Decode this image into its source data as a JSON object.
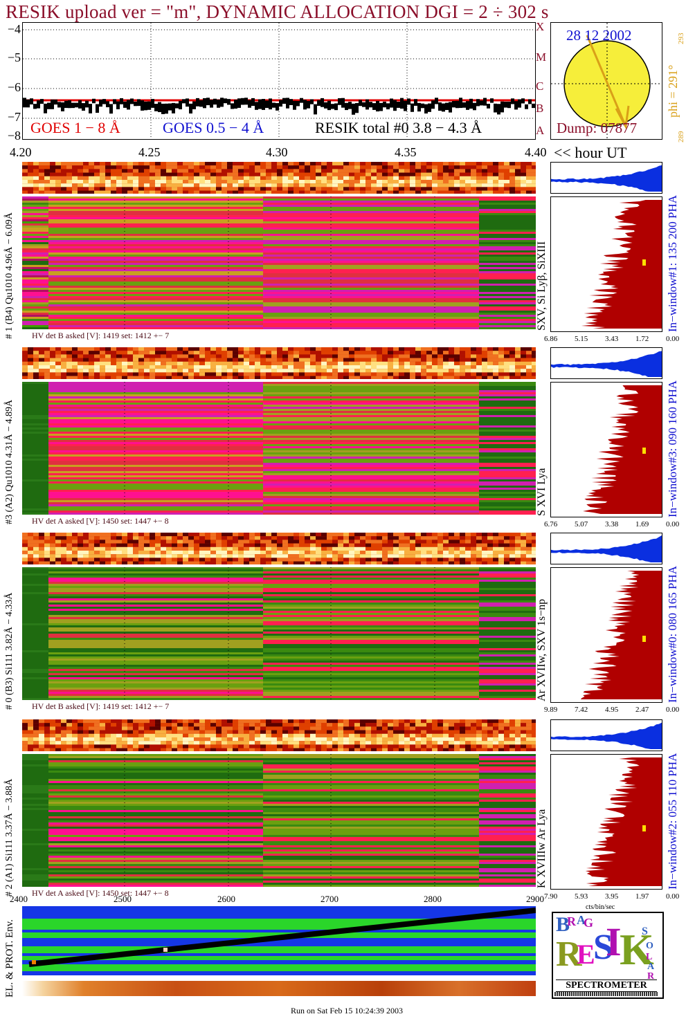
{
  "title": "RESIK upload ver = \"m\", DYNAMIC ALLOCATION  DGI =   2 ÷ 302 s",
  "footer": "Run on Sat Feb 15 10:24:39 2003",
  "colors": {
    "title": "#8b0f2a",
    "goes_long": "#e00000",
    "goes_short": "#1010d0",
    "resik": "#000000",
    "blue_hist": "#0a2fe0",
    "red_hist": "#b00000",
    "green": "#1f6b10",
    "magenta": "#d020b0"
  },
  "lightcurve": {
    "ytick_labels": [
      "−4",
      "−5",
      "−6",
      "−7",
      "−8"
    ],
    "xtick_labels": [
      "4.20",
      "4.25",
      "4.30",
      "4.35",
      "4.40"
    ],
    "x_unit": "<< hour UT",
    "legend": {
      "goes_long": "GOES 1 − 8 Å",
      "goes_short": "GOES 0.5 − 4 Å",
      "resik": "RESIK total #0  3.8 − 4.3 Å"
    }
  },
  "sun": {
    "date": "28 12 2002",
    "dump": "Dump: 07877",
    "letters": [
      "X",
      "M",
      "C",
      "B",
      "A"
    ],
    "phi_label": "phi = 291°",
    "phi_sup": "293",
    "phi_sub": "289"
  },
  "channels": [
    {
      "side_label": "# 1 (B4) Qu1010 4.96Å − 6.09Å",
      "line_label": "SXV, Si Lyβ, SiXIII",
      "hv": "HV det B asked [V]:  1419 set:  1412 +−    7",
      "window": "In−window#1:  135 200 PHA",
      "hist_ticks": [
        "6.86",
        "5.15",
        "3.43",
        "1.72",
        "0.00"
      ]
    },
    {
      "side_label": "#3 (A2) Qu1010  4.31Å − 4.89Å",
      "line_label": "S XVI Lya",
      "hv": "HV det A asked [V]:  1450 set:  1447 +−    8",
      "window": "In−window#3:  090 160 PHA",
      "hist_ticks": [
        "6.76",
        "5.07",
        "3.38",
        "1.69",
        "0.00"
      ]
    },
    {
      "side_label": "# 0 (B3) Si111  3.82Å − 4.33Å",
      "line_label": "Ar XVIIw, SXV 1s−np",
      "hv": "HV det B asked [V]:  1419 set:  1412 +−    7",
      "window": "In−window#0:  080 165 PHA",
      "hist_ticks": [
        "9.89",
        "7.42",
        "4.95",
        "2.47",
        "0.00"
      ]
    },
    {
      "side_label": "# 2 (A1) Si111  3.37Å − 3.88Å",
      "line_label": "K XVIIIw  Ar Lya",
      "hv": "HV det A asked [V]:  1450 set:  1447 +−    8",
      "window": "In−window#2:  055 110 PHA",
      "hist_ticks": [
        "7.90",
        "5.93",
        "3.95",
        "1.97",
        "0.00"
      ]
    }
  ],
  "hist_unit": "cts/bin/sec",
  "env": {
    "label": "EL. & PROT. Env.",
    "xtick_labels": [
      "2400",
      "2500",
      "2600",
      "2700",
      "2800",
      "2900"
    ]
  },
  "logo": {
    "word": "SPECTROMETER",
    "letters": [
      "B",
      "R",
      "A",
      "G",
      "R",
      "E",
      "S",
      "I",
      "K",
      "S",
      "O",
      "L",
      "A",
      "R"
    ]
  }
}
